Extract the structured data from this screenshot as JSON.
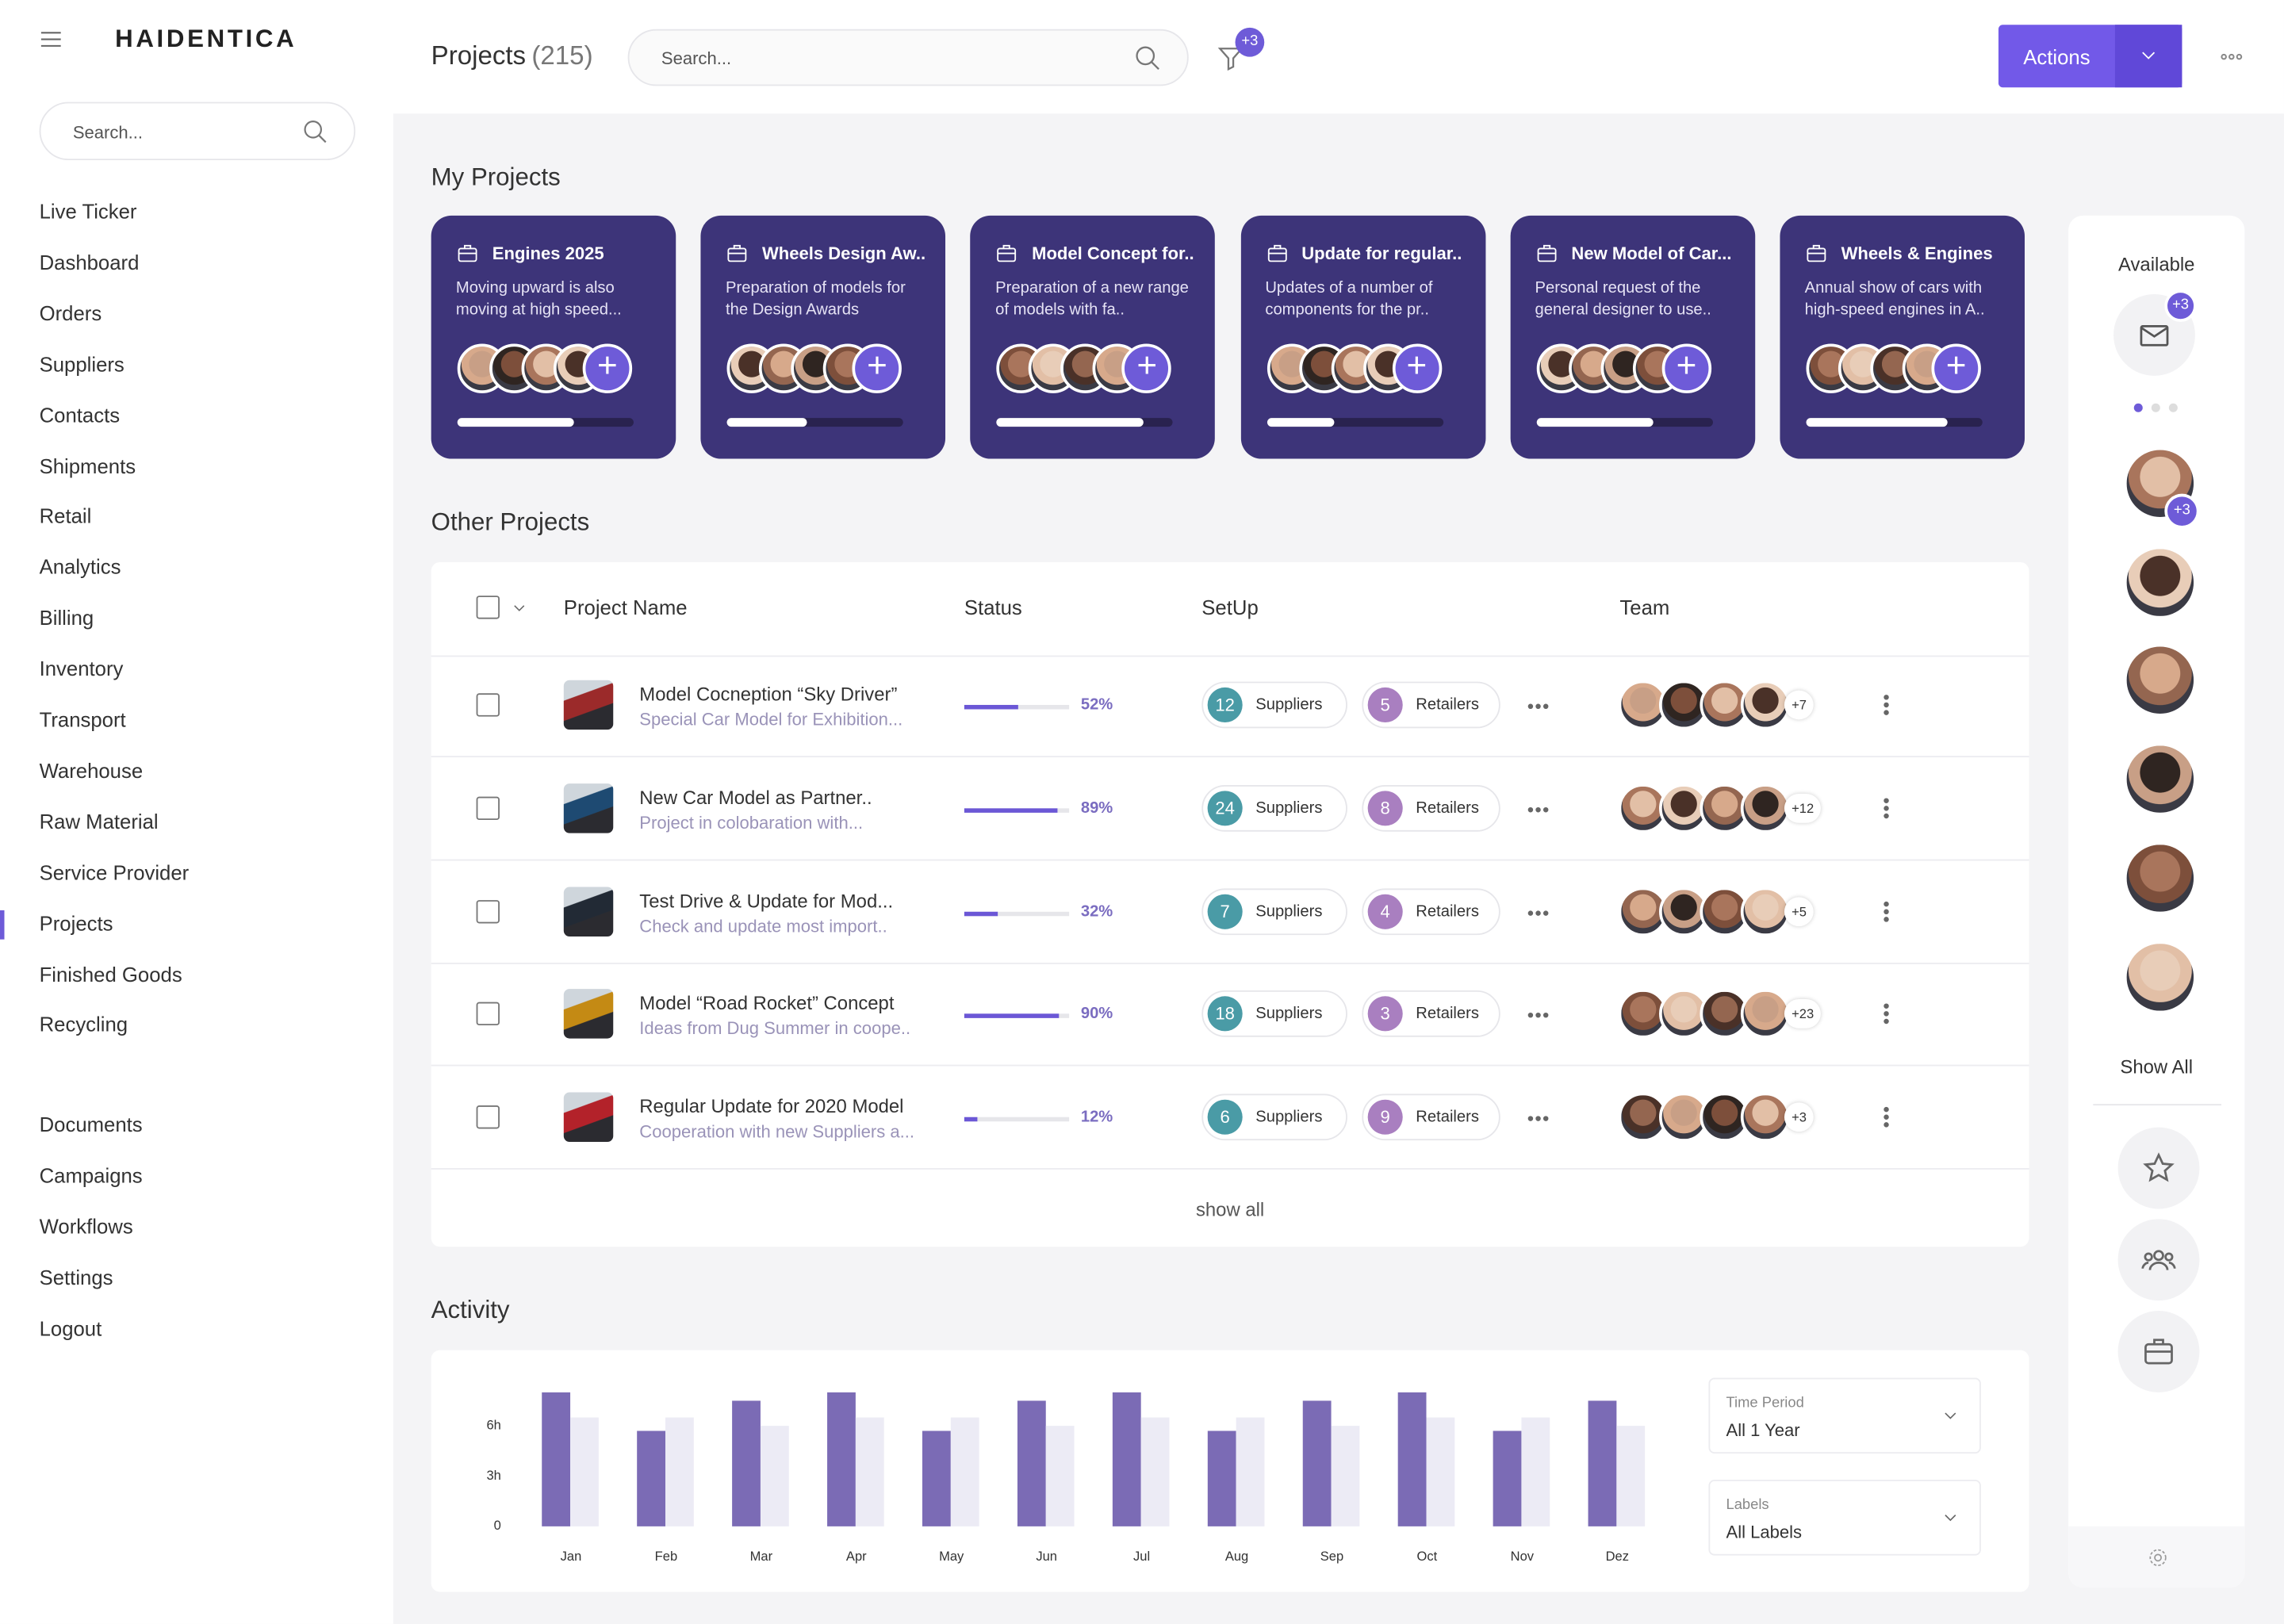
{
  "sidebar": {
    "brand": "HAIDENTICA",
    "search_placeholder": "Search...",
    "active": "Projects",
    "nav": [
      "Live Ticker",
      "Dashboard",
      "Orders",
      "Suppliers",
      "Contacts",
      "Shipments",
      "Retail",
      "Analytics",
      "Billing",
      "Inventory",
      "Transport",
      "Warehouse",
      "Raw Material",
      "Service Provider",
      "Projects",
      "Finished Goods",
      "Recycling"
    ],
    "nav_secondary": [
      "Documents",
      "Campaigns",
      "Workflows",
      "Settings",
      "Logout"
    ]
  },
  "header": {
    "title": "Projects",
    "count": "(215)",
    "search_placeholder": "Search...",
    "filter_badge": "+3",
    "action": "Actions"
  },
  "my_projects": {
    "title": "My Projects",
    "cards": [
      {
        "title": "Engines 2025",
        "description": "Moving upward is also moving at high speed...",
        "progress": 66
      },
      {
        "title": "Wheels Design Aw..",
        "description": "Preparation of models for the Design Awards",
        "progress": 45
      },
      {
        "title": "Model Concept for..",
        "description": "Preparation of a new range of models with fa..",
        "progress": 83
      },
      {
        "title": "Update for regular..",
        "description": "Updates of a number of components for the pr..",
        "progress": 38
      },
      {
        "title": "New Model of Car...",
        "description": "Personal request of the general designer to use..",
        "progress": 66
      },
      {
        "title": "Wheels & Engines",
        "description": "Annual show of cars with high-speed engines in A..",
        "progress": 80
      }
    ]
  },
  "other_projects": {
    "title": "Other Projects",
    "columns": [
      "Project Name",
      "Status",
      "SetUp",
      "Team"
    ],
    "suppliers_label": "Suppliers",
    "retailers_label": "Retailers",
    "show_all": "show all",
    "rows": [
      {
        "name": "Model Cocneption “Sky Driver”",
        "description": "Special Car Model for Exhibition...",
        "status": 52,
        "status_label": "52%",
        "suppliers": 12,
        "retailers": 5,
        "team_more": "+7"
      },
      {
        "name": "New Car Model as Partner..",
        "description": "Project in colobaration with...",
        "status": 89,
        "status_label": "89%",
        "suppliers": 24,
        "retailers": 8,
        "team_more": "+12"
      },
      {
        "name": "Test Drive & Update for Mod...",
        "description": "Check and update most import..",
        "status": 32,
        "status_label": "32%",
        "suppliers": 7,
        "retailers": 4,
        "team_more": "+5"
      },
      {
        "name": "Model  “Road Rocket” Concept",
        "description": "Ideas from Dug Summer in coope..",
        "status": 90,
        "status_label": "90%",
        "suppliers": 18,
        "retailers": 3,
        "team_more": "+23"
      },
      {
        "name": "Regular Update for 2020 Model",
        "description": "Cooperation with new Suppliers a...",
        "status": 12,
        "status_label": "12%",
        "suppliers": 6,
        "retailers": 9,
        "team_more": "+3"
      }
    ]
  },
  "activity": {
    "title": "Activity",
    "filters": [
      {
        "label": "Time Period",
        "value": "All 1 Year"
      },
      {
        "label": "Labels",
        "value": "All Labels"
      }
    ]
  },
  "right_panel": {
    "title": "Available",
    "mail_badge": "+3",
    "avatar_badge": "+3",
    "show_all": "Show All"
  },
  "chart_data": {
    "type": "bar",
    "categories": [
      "Jan",
      "Feb",
      "Mar",
      "Apr",
      "May",
      "Jun",
      "Jul",
      "Aug",
      "Sep",
      "Oct",
      "Nov",
      "Dez"
    ],
    "series": [
      {
        "color": "#7b6bb5",
        "values": [
          8,
          5.7,
          7.5,
          8,
          5.7,
          7.5,
          8,
          5.7,
          7.5,
          8,
          5.7,
          7.5
        ]
      },
      {
        "color": "#ecebf5",
        "values": [
          6.5,
          6.5,
          6,
          6.5,
          6.5,
          6,
          6.5,
          6.5,
          6,
          6.5,
          6.5,
          6
        ]
      }
    ],
    "ylim": [
      0,
      8
    ],
    "yticks": [
      0,
      {
        "value": 3,
        "label": "3h"
      },
      {
        "value": 6,
        "label": "6h"
      }
    ]
  }
}
